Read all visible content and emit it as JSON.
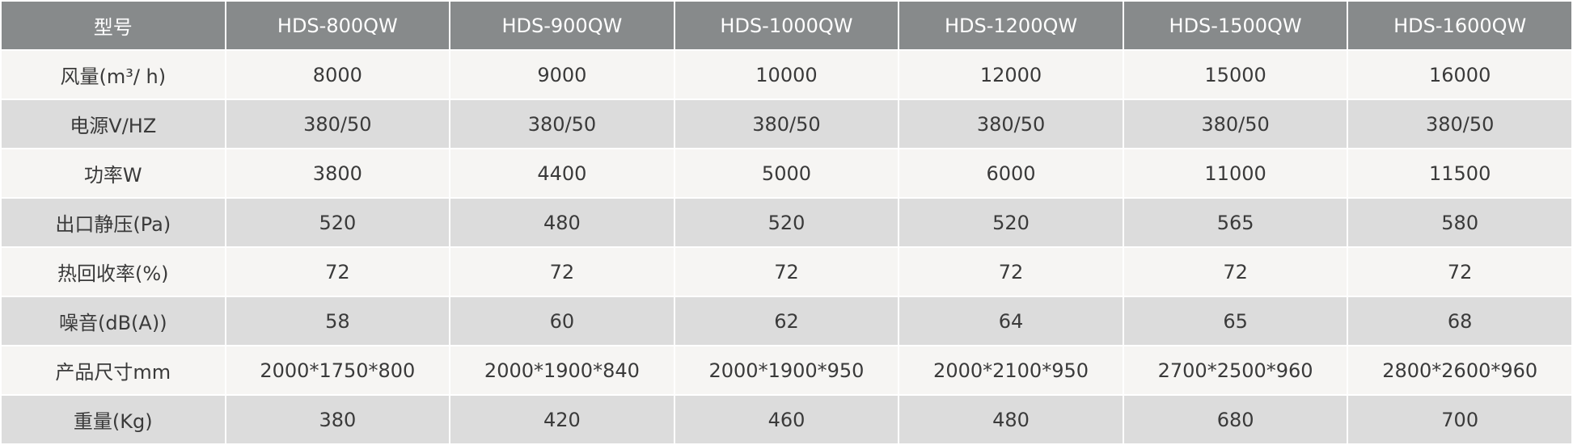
{
  "table": {
    "header": [
      "型号",
      "HDS-800QW",
      "HDS-900QW",
      "HDS-1000QW",
      "HDS-1200QW",
      "HDS-1500QW",
      "HDS-1600QW"
    ],
    "rows": [
      [
        "风量(m³/ h)",
        8000,
        9000,
        10000,
        12000,
        15000,
        16000
      ],
      [
        "电源V/HZ",
        "380/50",
        "380/50",
        "380/50",
        "380/50",
        "380/50",
        "380/50"
      ],
      [
        "功率W",
        3800,
        4400,
        5000,
        6000,
        11000,
        11500
      ],
      [
        "出口静压(Pa)",
        520,
        480,
        520,
        520,
        565,
        580
      ],
      [
        "热回收率(%)",
        72,
        72,
        72,
        72,
        72,
        72
      ],
      [
        "噪音(dB(A))",
        58,
        60,
        62,
        64,
        65,
        68
      ],
      [
        "产品尺寸mm",
        "2000*1750*800",
        "2000*1900*840",
        "2000*1900*950",
        "2000*2100*950",
        "2700*2500*960",
        "2800*2600*960"
      ],
      [
        "重量(Kg)",
        380,
        420,
        460,
        480,
        680,
        700
      ]
    ]
  }
}
